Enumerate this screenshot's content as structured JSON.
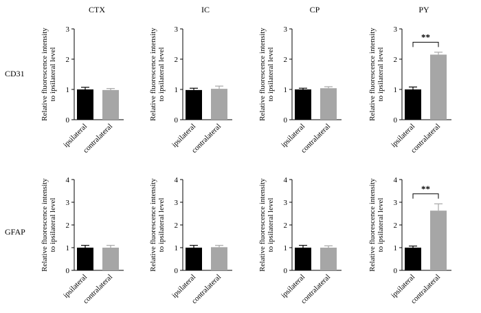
{
  "figure": {
    "column_titles": [
      "CTX",
      "IC",
      "CP",
      "PY"
    ],
    "row_labels": [
      "CD31",
      "GFAP"
    ],
    "ylabel_lines": [
      "Relative fluorescence intensity",
      "to ipsilateral level"
    ],
    "colors": {
      "ipsilateral": "#000000",
      "contralateral": "#a6a6a6"
    }
  },
  "chart_data": [
    {
      "type": "bar",
      "row": "CD31",
      "column": "CTX",
      "categories": [
        "ipsilateral",
        "contralateral"
      ],
      "values": [
        1.0,
        0.98
      ],
      "errors": [
        0.07,
        0.05
      ],
      "ylim": [
        0,
        3
      ],
      "yticks": [
        0,
        1,
        2,
        3
      ],
      "significance": ""
    },
    {
      "type": "bar",
      "row": "CD31",
      "column": "IC",
      "categories": [
        "ipsilateral",
        "contralateral"
      ],
      "values": [
        0.98,
        1.02
      ],
      "errors": [
        0.06,
        0.09
      ],
      "ylim": [
        0,
        3
      ],
      "yticks": [
        0,
        1,
        2,
        3
      ],
      "significance": ""
    },
    {
      "type": "bar",
      "row": "CD31",
      "column": "CP",
      "categories": [
        "ipsilateral",
        "contralateral"
      ],
      "values": [
        1.0,
        1.04
      ],
      "errors": [
        0.04,
        0.05
      ],
      "ylim": [
        0,
        3
      ],
      "yticks": [
        0,
        1,
        2,
        3
      ],
      "significance": ""
    },
    {
      "type": "bar",
      "row": "CD31",
      "column": "PY",
      "categories": [
        "ipsilateral",
        "contralateral"
      ],
      "values": [
        1.0,
        2.15
      ],
      "errors": [
        0.08,
        0.08
      ],
      "ylim": [
        0,
        3
      ],
      "yticks": [
        0,
        1,
        2,
        3
      ],
      "significance": "**"
    },
    {
      "type": "bar",
      "row": "GFAP",
      "column": "CTX",
      "categories": [
        "ipsilateral",
        "contralateral"
      ],
      "values": [
        1.0,
        1.0
      ],
      "errors": [
        0.1,
        0.1
      ],
      "ylim": [
        0,
        4
      ],
      "yticks": [
        0,
        1,
        2,
        3,
        4
      ],
      "significance": ""
    },
    {
      "type": "bar",
      "row": "GFAP",
      "column": "IC",
      "categories": [
        "ipsilateral",
        "contralateral"
      ],
      "values": [
        1.0,
        1.02
      ],
      "errors": [
        0.1,
        0.08
      ],
      "ylim": [
        0,
        4
      ],
      "yticks": [
        0,
        1,
        2,
        3,
        4
      ],
      "significance": ""
    },
    {
      "type": "bar",
      "row": "GFAP",
      "column": "CP",
      "categories": [
        "ipsilateral",
        "contralateral"
      ],
      "values": [
        1.0,
        1.0
      ],
      "errors": [
        0.1,
        0.08
      ],
      "ylim": [
        0,
        4
      ],
      "yticks": [
        0,
        1,
        2,
        3,
        4
      ],
      "significance": ""
    },
    {
      "type": "bar",
      "row": "GFAP",
      "column": "PY",
      "categories": [
        "ipsilateral",
        "contralateral"
      ],
      "values": [
        1.0,
        2.63
      ],
      "errors": [
        0.07,
        0.3
      ],
      "ylim": [
        0,
        4
      ],
      "yticks": [
        0,
        1,
        2,
        3,
        4
      ],
      "significance": "**"
    }
  ]
}
